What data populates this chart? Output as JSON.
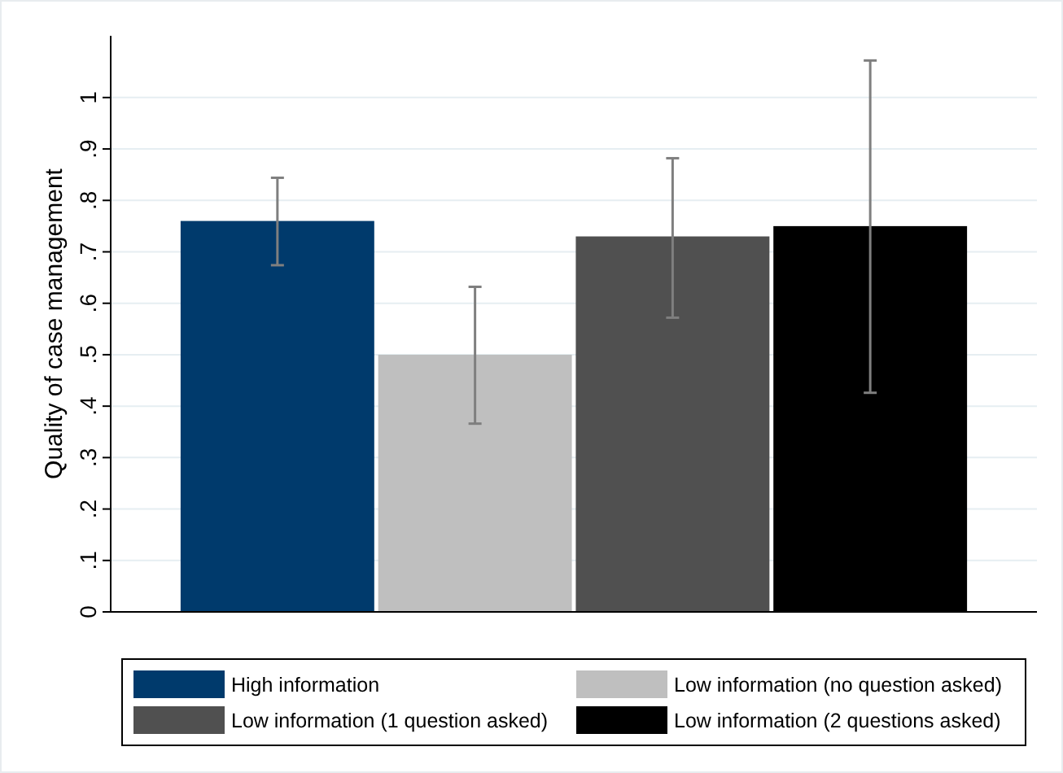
{
  "chart_data": {
    "type": "bar",
    "ylabel": "Quality of case management",
    "categories": [
      null
    ],
    "series": [
      {
        "name": "High information",
        "color": "#003a6c",
        "values": [
          0.76
        ],
        "errors": [
          [
            0.674,
            0.844
          ]
        ]
      },
      {
        "name": "Low information (no question asked)",
        "color": "#bfbfbf",
        "values": [
          0.5
        ],
        "errors": [
          [
            0.366,
            0.632
          ]
        ]
      },
      {
        "name": "Low information (1 question asked)",
        "color": "#505050",
        "values": [
          0.73
        ],
        "errors": [
          [
            0.572,
            0.882
          ]
        ]
      },
      {
        "name": "Low information (2 questions asked)",
        "color": "#000000",
        "values": [
          0.75
        ],
        "errors": [
          [
            0.426,
            1.072
          ]
        ]
      }
    ],
    "ylim": [
      0,
      1.12
    ],
    "yticks": [
      {
        "value": 0,
        "label": "0"
      },
      {
        "value": 0.1,
        "label": ".1"
      },
      {
        "value": 0.2,
        "label": ".2"
      },
      {
        "value": 0.3,
        "label": ".3"
      },
      {
        "value": 0.4,
        "label": ".4"
      },
      {
        "value": 0.5,
        "label": ".5"
      },
      {
        "value": 0.6,
        "label": ".6"
      },
      {
        "value": 0.7,
        "label": ".7"
      },
      {
        "value": 0.8,
        "label": ".8"
      },
      {
        "value": 0.9,
        "label": ".9"
      },
      {
        "value": 1,
        "label": "1"
      }
    ],
    "grid": "y",
    "legend": "bottom"
  }
}
